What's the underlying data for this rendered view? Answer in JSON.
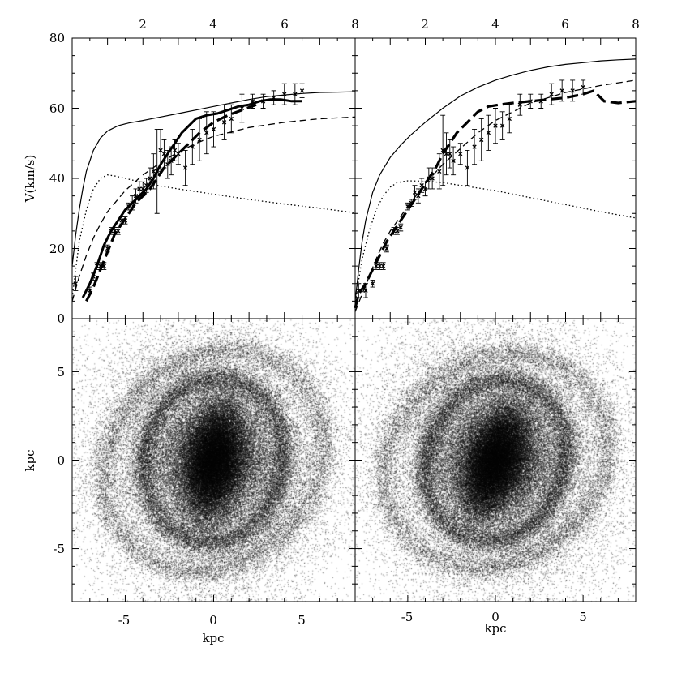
{
  "chart_data": [
    {
      "panel": "top-left",
      "type": "line",
      "xlabel_top_ticks": [
        "2",
        "4",
        "6",
        "8"
      ],
      "ylabel": "V(km/s)",
      "y_tick_labels": [
        "0",
        "20",
        "40",
        "60",
        "80"
      ],
      "xlim": [
        0,
        8
      ],
      "ylim": [
        0,
        80
      ],
      "series": [
        {
          "style": "solid-thin",
          "x": [
            0,
            0.1,
            0.2,
            0.3,
            0.4,
            0.6,
            0.8,
            1.0,
            1.3,
            1.6,
            2.0,
            2.5,
            3.0,
            3.5,
            4.0,
            4.5,
            5.0,
            5.5,
            6.0,
            6.5,
            7.0,
            7.5,
            8.0
          ],
          "y": [
            15,
            24,
            31,
            37,
            42,
            48,
            51.5,
            53.5,
            55,
            55.8,
            56.5,
            57.5,
            58.5,
            59.5,
            60.5,
            61.5,
            62.5,
            63.3,
            63.8,
            64.2,
            64.5,
            64.6,
            64.7
          ]
        },
        {
          "style": "dotted",
          "x": [
            0,
            0.1,
            0.2,
            0.4,
            0.6,
            0.8,
            1.0,
            1.2,
            1.5,
            2.0,
            2.5,
            3.0,
            4.0,
            5.0,
            6.0,
            7.0,
            8.0
          ],
          "y": [
            6,
            14,
            22,
            31,
            37,
            40,
            41,
            40.7,
            40,
            38.8,
            37.8,
            37,
            35.5,
            34,
            32.7,
            31.5,
            30.2
          ]
        },
        {
          "style": "dashed",
          "x": [
            0,
            0.2,
            0.4,
            0.6,
            0.8,
            1.0,
            1.5,
            2.0,
            2.5,
            3.0,
            3.5,
            4.0,
            5.0,
            6.0,
            7.0,
            8.0
          ],
          "y": [
            5,
            12,
            18,
            23,
            27,
            30.5,
            36.5,
            41,
            44.5,
            47.5,
            50,
            52,
            54.5,
            56,
            57,
            57.5
          ]
        },
        {
          "style": "solid-thick",
          "x": [
            0.3,
            0.5,
            0.7,
            0.9,
            1.1,
            1.3,
            1.5,
            1.7,
            1.9,
            2.1,
            2.3,
            2.5,
            2.7,
            2.9,
            3.1,
            3.3,
            3.5,
            3.8,
            4.1,
            4.4,
            4.7,
            5.0,
            5.3,
            5.6,
            5.9,
            6.2,
            6.5
          ],
          "y": [
            6,
            10,
            15,
            21,
            25,
            28,
            31,
            33,
            35,
            37,
            40,
            44,
            47,
            50,
            53,
            55,
            57,
            58,
            58.5,
            59.5,
            60.5,
            61,
            62,
            62.5,
            62.5,
            62,
            62
          ]
        },
        {
          "style": "dashed-thick",
          "x": [
            0.4,
            0.6,
            0.8,
            1.0,
            1.2,
            1.4,
            1.6,
            1.8,
            2.0,
            2.2,
            2.4,
            2.6,
            2.8,
            3.0,
            3.3,
            3.6,
            4.0,
            4.4,
            4.8,
            5.2
          ],
          "y": [
            5,
            9,
            14,
            19,
            24,
            27,
            30,
            33,
            35,
            37,
            40,
            43,
            45,
            47,
            50,
            53,
            56,
            58,
            59.5,
            61
          ]
        }
      ],
      "error_points": {
        "x": [
          0.1,
          0.5,
          0.6,
          0.7,
          0.8,
          0.9,
          1.0,
          1.1,
          1.2,
          1.3,
          1.4,
          1.5,
          1.6,
          1.7,
          1.8,
          1.9,
          2.0,
          2.1,
          2.2,
          2.3,
          2.4,
          2.5,
          2.6,
          2.7,
          2.8,
          2.9,
          3.0,
          3.2,
          3.4,
          3.6,
          3.8,
          4.0,
          4.3,
          4.5,
          4.8,
          5.1,
          5.4,
          5.7,
          6.0,
          6.3,
          6.5
        ],
        "y": [
          10,
          8,
          12,
          15,
          15,
          15,
          20,
          25,
          25,
          25,
          28,
          28,
          32,
          33,
          35,
          37,
          37,
          38,
          40,
          42,
          42,
          48,
          47,
          44,
          45,
          48,
          47,
          43,
          49,
          51,
          53,
          54,
          56,
          57,
          60,
          62,
          62,
          63,
          64,
          64,
          65
        ],
        "err": [
          2,
          1,
          1,
          1,
          1,
          1,
          1,
          1,
          1,
          1,
          1,
          1,
          1,
          2,
          2,
          2,
          2,
          2,
          3,
          5,
          12,
          6,
          4,
          4,
          4,
          3,
          3,
          5,
          5,
          6,
          6,
          5,
          5,
          4,
          4,
          2,
          2,
          2,
          3,
          3,
          2
        ]
      }
    },
    {
      "panel": "top-right",
      "type": "line",
      "xlabel_top_ticks": [
        "2",
        "4",
        "6",
        "8"
      ],
      "xlim": [
        0,
        8
      ],
      "ylim": [
        0,
        80
      ],
      "series": [
        {
          "style": "solid-thin",
          "x": [
            0,
            0.1,
            0.2,
            0.3,
            0.5,
            0.7,
            1.0,
            1.3,
            1.6,
            2.0,
            2.5,
            3.0,
            3.5,
            4.0,
            4.5,
            5.0,
            5.5,
            6.0,
            6.5,
            7.0,
            7.5,
            8.0
          ],
          "y": [
            5,
            14,
            22,
            28,
            36,
            41,
            46,
            49.5,
            52.5,
            56,
            60,
            63.5,
            66,
            68,
            69.5,
            70.8,
            71.8,
            72.5,
            73,
            73.5,
            73.8,
            74
          ]
        },
        {
          "style": "dotted",
          "x": [
            0,
            0.1,
            0.2,
            0.4,
            0.6,
            0.8,
            1.0,
            1.2,
            1.5,
            2.0,
            2.5,
            3.0,
            4.0,
            5.0,
            6.0,
            7.0,
            8.0
          ],
          "y": [
            4,
            11,
            17,
            25,
            31,
            35,
            37.5,
            38.8,
            39.3,
            39.2,
            38.8,
            38,
            36.5,
            34.5,
            32.5,
            30.5,
            28.7
          ]
        },
        {
          "style": "dashed",
          "x": [
            0,
            0.2,
            0.4,
            0.6,
            0.8,
            1.0,
            1.5,
            2.0,
            2.5,
            3.0,
            3.5,
            4.0,
            5.0,
            6.0,
            7.0,
            8.0
          ],
          "y": [
            2,
            7,
            12,
            17,
            21.5,
            25,
            32,
            38.5,
            44,
            48.5,
            53,
            56.5,
            61.5,
            64.5,
            66.5,
            68
          ]
        },
        {
          "style": "dashed-thick",
          "x": [
            0,
            0.1,
            0.3,
            0.5,
            0.7,
            0.9,
            1.1,
            1.3,
            1.5,
            1.7,
            1.9,
            2.1,
            2.3,
            2.5,
            2.7,
            2.9,
            3.1,
            3.3,
            3.5,
            3.8,
            4.1,
            4.5,
            5.0,
            5.5,
            6.0,
            6.5,
            6.8,
            7.1,
            7.5,
            8.0
          ],
          "y": [
            3,
            7,
            10,
            14,
            18,
            22,
            25,
            28,
            31,
            34,
            37,
            40,
            43,
            47,
            50,
            53,
            55,
            57,
            59,
            60.5,
            61,
            61.5,
            62,
            62.5,
            63,
            64,
            65,
            62,
            61.5,
            62
          ]
        }
      ],
      "error_points": {
        "x": [
          0.1,
          0.3,
          0.5,
          0.6,
          0.7,
          0.8,
          0.9,
          1.1,
          1.2,
          1.3,
          1.5,
          1.6,
          1.7,
          1.8,
          1.9,
          2.0,
          2.1,
          2.2,
          2.4,
          2.5,
          2.6,
          2.7,
          2.8,
          3.0,
          3.2,
          3.4,
          3.6,
          3.8,
          4.0,
          4.2,
          4.4,
          4.7,
          5.0,
          5.3,
          5.6,
          5.9,
          6.2,
          6.5
        ],
        "y": [
          8,
          8,
          10,
          15,
          15,
          15,
          20,
          25,
          25,
          26,
          32,
          33,
          36,
          35,
          38,
          37,
          40,
          40,
          42,
          48,
          47,
          47,
          45,
          47,
          43,
          49,
          51,
          53,
          55,
          55,
          57,
          61,
          62,
          62,
          64,
          65,
          65,
          66
        ],
        "err": [
          2,
          2,
          1,
          1,
          1,
          1,
          1,
          1,
          1,
          1,
          1,
          1,
          2,
          2,
          2,
          2,
          3,
          3,
          5,
          10,
          6,
          4,
          4,
          3,
          5,
          5,
          6,
          5,
          5,
          4,
          4,
          3,
          2,
          2,
          3,
          3,
          3,
          2
        ]
      }
    },
    {
      "panel": "bottom-left",
      "type": "scatter",
      "xlabel": "kpc",
      "ylabel": "kpc",
      "x_tick_labels": [
        "-5",
        "0",
        "5"
      ],
      "y_tick_labels": [
        "-5",
        "0",
        "5"
      ],
      "xlim": [
        -8,
        8
      ],
      "ylim": [
        -8,
        8
      ],
      "bar_angle_deg": 80,
      "bar_length_kpc": 3.5
    },
    {
      "panel": "bottom-right",
      "type": "scatter",
      "x_tick_labels": [
        "-5",
        "0",
        "5"
      ],
      "xlabel": "kpc",
      "xlim": [
        -8,
        8
      ],
      "ylim": [
        -8,
        8
      ],
      "bar_angle_deg": 70,
      "bar_length_kpc": 3.5
    }
  ],
  "colors": {
    "ink": "#000000",
    "background": "#ffffff"
  }
}
